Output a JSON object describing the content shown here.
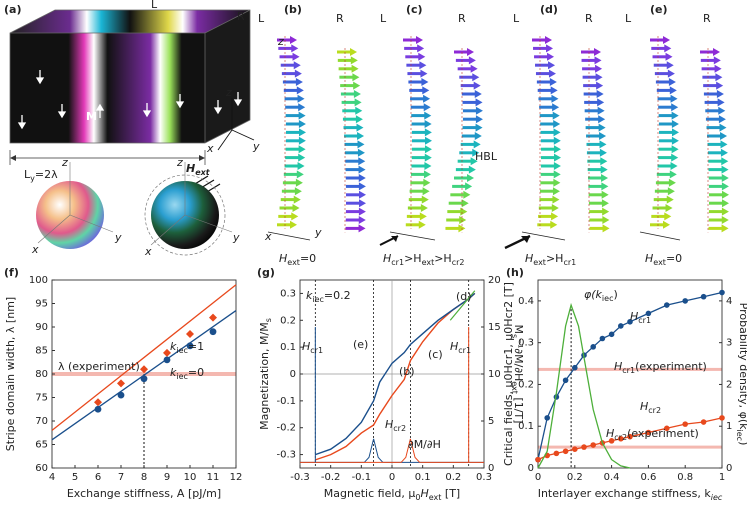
{
  "figure": {
    "top_panels": [
      {
        "id": "a",
        "label": "(a)"
      },
      {
        "id": "b",
        "label": "(b)",
        "caption": "H_ext=0"
      },
      {
        "id": "c",
        "label": "(c)",
        "caption": "H_cr1>H_ext>H_cr2",
        "annotation": "HBL"
      },
      {
        "id": "d",
        "label": "(d)",
        "caption": "H_ext>H_cr1"
      },
      {
        "id": "e",
        "label": "(e)",
        "caption": "H_ext=0"
      }
    ],
    "layer_labels": [
      "L",
      "R"
    ],
    "panel_a": {
      "moment": "M",
      "field": "H_ext",
      "width_label": "L_y=2λ",
      "axes": [
        "z",
        "y",
        "x"
      ]
    }
  },
  "chart_data": [
    {
      "id": "f",
      "label": "(f)",
      "type": "scatter",
      "xlabel": "Exchange stiffness, A [pJ/m]",
      "ylabel": "Stripe domain width, λ [nm]",
      "xlim": [
        4,
        12
      ],
      "ylim": [
        60,
        100
      ],
      "xticks": [
        4,
        5,
        6,
        7,
        8,
        9,
        10,
        11,
        12
      ],
      "yticks": [
        60,
        65,
        70,
        75,
        80,
        85,
        90,
        95,
        100
      ],
      "series": [
        {
          "name": "k_iec=1",
          "color": "#e8491d",
          "marker": "diamond",
          "x": [
            6,
            7,
            8,
            9,
            10,
            11
          ],
          "y": [
            74,
            78,
            81,
            84.5,
            88.5,
            92
          ],
          "fit": [
            [
              4,
              68
            ],
            [
              12,
              99
            ]
          ]
        },
        {
          "name": "k_iec=0",
          "color": "#1a4f8c",
          "marker": "circle",
          "x": [
            6,
            7,
            8,
            9,
            10,
            11
          ],
          "y": [
            72.5,
            75.5,
            79,
            83,
            86,
            89
          ],
          "fit": [
            [
              4,
              66
            ],
            [
              12,
              93.5
            ]
          ]
        }
      ],
      "reference": {
        "label": "λ (experiment)",
        "y": 80,
        "color": "#f4b8b0"
      },
      "marker_x": 8
    },
    {
      "id": "g",
      "label": "(g)",
      "type": "line",
      "xlabel": "Magnetic field, μ0Hext [T]",
      "ylabel": "Magnetization, M/Ms",
      "ylabel_right": "Ms⁻¹∂M/∂Hext [1/T]",
      "xlim": [
        -0.3,
        0.3
      ],
      "ylim": [
        -0.35,
        0.35
      ],
      "y2lim": [
        0,
        20
      ],
      "xticks": [
        -0.3,
        -0.2,
        -0.1,
        0,
        0.1,
        0.2,
        0.3
      ],
      "yticks": [
        -0.3,
        -0.2,
        -0.1,
        0,
        0.1,
        0.2,
        0.3
      ],
      "y2ticks": [
        0,
        5,
        10,
        15,
        20
      ],
      "annotations": [
        "k_iec=0.2",
        "H_cr1",
        "H_cr1",
        "H_cr2",
        "(e)",
        "(b)",
        "(c)",
        "(d)",
        "∂M/∂H"
      ],
      "series": [
        {
          "name": "M up",
          "color": "#e8491d",
          "x": [
            -0.25,
            -0.2,
            -0.15,
            -0.1,
            -0.06,
            -0.04,
            0,
            0.04,
            0.06,
            0.1,
            0.15,
            0.2,
            0.25,
            0.27
          ],
          "y": [
            -0.32,
            -0.3,
            -0.27,
            -0.22,
            -0.19,
            -0.15,
            -0.08,
            -0.02,
            0.05,
            0.12,
            0.19,
            0.24,
            0.28,
            0.3
          ]
        },
        {
          "name": "M down",
          "color": "#1a4f8c",
          "x": [
            -0.25,
            -0.2,
            -0.15,
            -0.1,
            -0.06,
            -0.04,
            0,
            0.04,
            0.06,
            0.1,
            0.15,
            0.2,
            0.25,
            0.27
          ],
          "y": [
            -0.3,
            -0.28,
            -0.24,
            -0.18,
            -0.1,
            -0.03,
            0.04,
            0.08,
            0.11,
            0.15,
            0.2,
            0.24,
            0.28,
            0.3
          ]
        }
      ],
      "vlines": [
        -0.25,
        -0.06,
        0.06,
        0.25
      ]
    },
    {
      "id": "h",
      "label": "(h)",
      "type": "line",
      "xlabel": "Interlayer exchange stiffness, k_iec",
      "ylabel": "Critical fields, μ0Hcr1, μ0Hcr2 [T]",
      "ylabel_right": "Probability density, φ(k_iec)",
      "xlim": [
        0,
        1
      ],
      "ylim": [
        0,
        0.45
      ],
      "y2lim": [
        0,
        4.5
      ],
      "xticks": [
        0,
        0.2,
        0.4,
        0.6,
        0.8,
        1
      ],
      "xtick_labels": [
        "0",
        "0.2",
        "0.4",
        "0.6",
        "0.8",
        "1"
      ],
      "yticks": [
        0,
        0.1,
        0.2,
        0.3,
        0.4
      ],
      "y2ticks": [
        0,
        1,
        2,
        3,
        4
      ],
      "series": [
        {
          "name": "H_cr1",
          "color": "#1a4f8c",
          "x": [
            0,
            0.05,
            0.1,
            0.15,
            0.2,
            0.25,
            0.3,
            0.35,
            0.4,
            0.45,
            0.5,
            0.6,
            0.7,
            0.8,
            0.9,
            1.0
          ],
          "y": [
            0.02,
            0.12,
            0.17,
            0.21,
            0.24,
            0.27,
            0.29,
            0.31,
            0.32,
            0.34,
            0.35,
            0.37,
            0.39,
            0.4,
            0.41,
            0.42
          ]
        },
        {
          "name": "H_cr2",
          "color": "#e8491d",
          "x": [
            0,
            0.05,
            0.1,
            0.15,
            0.2,
            0.25,
            0.3,
            0.35,
            0.4,
            0.45,
            0.5,
            0.6,
            0.7,
            0.8,
            0.9,
            1.0
          ],
          "y": [
            0.02,
            0.03,
            0.035,
            0.04,
            0.045,
            0.05,
            0.055,
            0.06,
            0.065,
            0.07,
            0.075,
            0.085,
            0.095,
            0.105,
            0.11,
            0.12
          ]
        },
        {
          "name": "φ(k_iec)",
          "color": "#4daf3a",
          "axis": "right",
          "x": [
            0,
            0.05,
            0.1,
            0.15,
            0.18,
            0.22,
            0.26,
            0.3,
            0.35,
            0.4,
            0.45,
            0.5
          ],
          "y": [
            0,
            0.4,
            1.8,
            3.4,
            3.9,
            3.4,
            2.4,
            1.4,
            0.6,
            0.2,
            0.05,
            0
          ]
        }
      ],
      "references": [
        {
          "label": "H_cr1(experiment)",
          "y": 0.236,
          "color": "#f4b8b0"
        },
        {
          "label": "H_cr2(experiment)",
          "y": 0.05,
          "color": "#f4b8b0"
        }
      ],
      "marker_x": 0.18
    }
  ],
  "text": {
    "a": "(a)",
    "b": "(b)",
    "c": "(c)",
    "d": "(d)",
    "e": "(e)",
    "f": "(f)",
    "g": "(g)",
    "h": "(h)",
    "L": "L",
    "R": "R",
    "z": "z",
    "y": "y",
    "x": "x",
    "M": "M",
    "Hext": "H",
    "Hext_sub": "ext",
    "Ly": "L",
    "Ly_sub": "y",
    "Ly_rest": "=2λ",
    "HBL": "HBL",
    "cap_b": "H",
    "cap_b_sub": "ext",
    "cap_b_rest": "=0",
    "cap_c1": "H",
    "cap_c1_sub": "cr1",
    "cap_c2": ">H",
    "cap_c2_sub": "ext",
    "cap_c3": ">H",
    "cap_c3_sub": "cr2",
    "cap_d1": "H",
    "cap_d1_sub": "ext",
    "cap_d2": ">H",
    "cap_d2_sub": "cr1",
    "cap_e": "H",
    "cap_e_sub": "ext",
    "cap_e_rest": "=0",
    "f_xlabel": "Exchange stiffness, A [pJ/m]",
    "f_ylabel": "Stripe domain width, λ [nm]",
    "f_k1": "k",
    "f_k1_sub": "iec",
    "f_k1_rest": "=1",
    "f_k0": "k",
    "f_k0_sub": "iec",
    "f_k0_rest": "=0",
    "f_exp": "λ (experiment)",
    "g_xlabel": "Magnetic field, μ",
    "g_xlabel_sub": "0",
    "g_xlabel_rest": "H",
    "g_xlabel_sub2": "ext",
    "g_xlabel_end": " [T]",
    "g_ylabel": "Magnetization, M/M",
    "g_ylabel_sub": "s",
    "g_ylabel_right": "M",
    "g_ylabel_right2": "s",
    "g_ylabel_right3": "⁻¹∂M/∂H",
    "g_ylabel_right4": "ext",
    "g_ylabel_right5": " [1/T]",
    "g_kiec": "k",
    "g_kiec_sub": "iec",
    "g_kiec_rest": "=0.2",
    "g_hcr1": "H",
    "g_hcr1_sub": "cr1",
    "g_hcr2": "H",
    "g_hcr2_sub": "cr2",
    "g_dmdh": "∂M/∂H",
    "h_xlabel": "Interlayer exchange stiffness, k",
    "h_xlabel_sub": "iec",
    "h_ylabel": "Critical fields, μ",
    "h_ylabel_right": "Probability density, φ(k",
    "h_ylabel_right_sub": "iec",
    "h_ylabel_right_end": ")",
    "h_phi": "φ(k",
    "h_phi_sub": "iec",
    "h_phi_end": ")",
    "h_hcr1": "H",
    "h_hcr1_sub": "cr1",
    "h_hcr2": "H",
    "h_hcr2_sub": "cr2",
    "h_hcr1exp": "H",
    "h_hcr1exp_sub": "cr1",
    "h_hcr1exp_rest": "(experiment)",
    "h_hcr2exp": "H",
    "h_hcr2exp_sub": "cr2",
    "h_hcr2exp_rest": "(experiment)"
  },
  "colors": {
    "blue": "#1a4f8c",
    "orange": "#e8491d",
    "green": "#4daf3a",
    "pink": "#f4b8b0",
    "grey": "#888888"
  }
}
